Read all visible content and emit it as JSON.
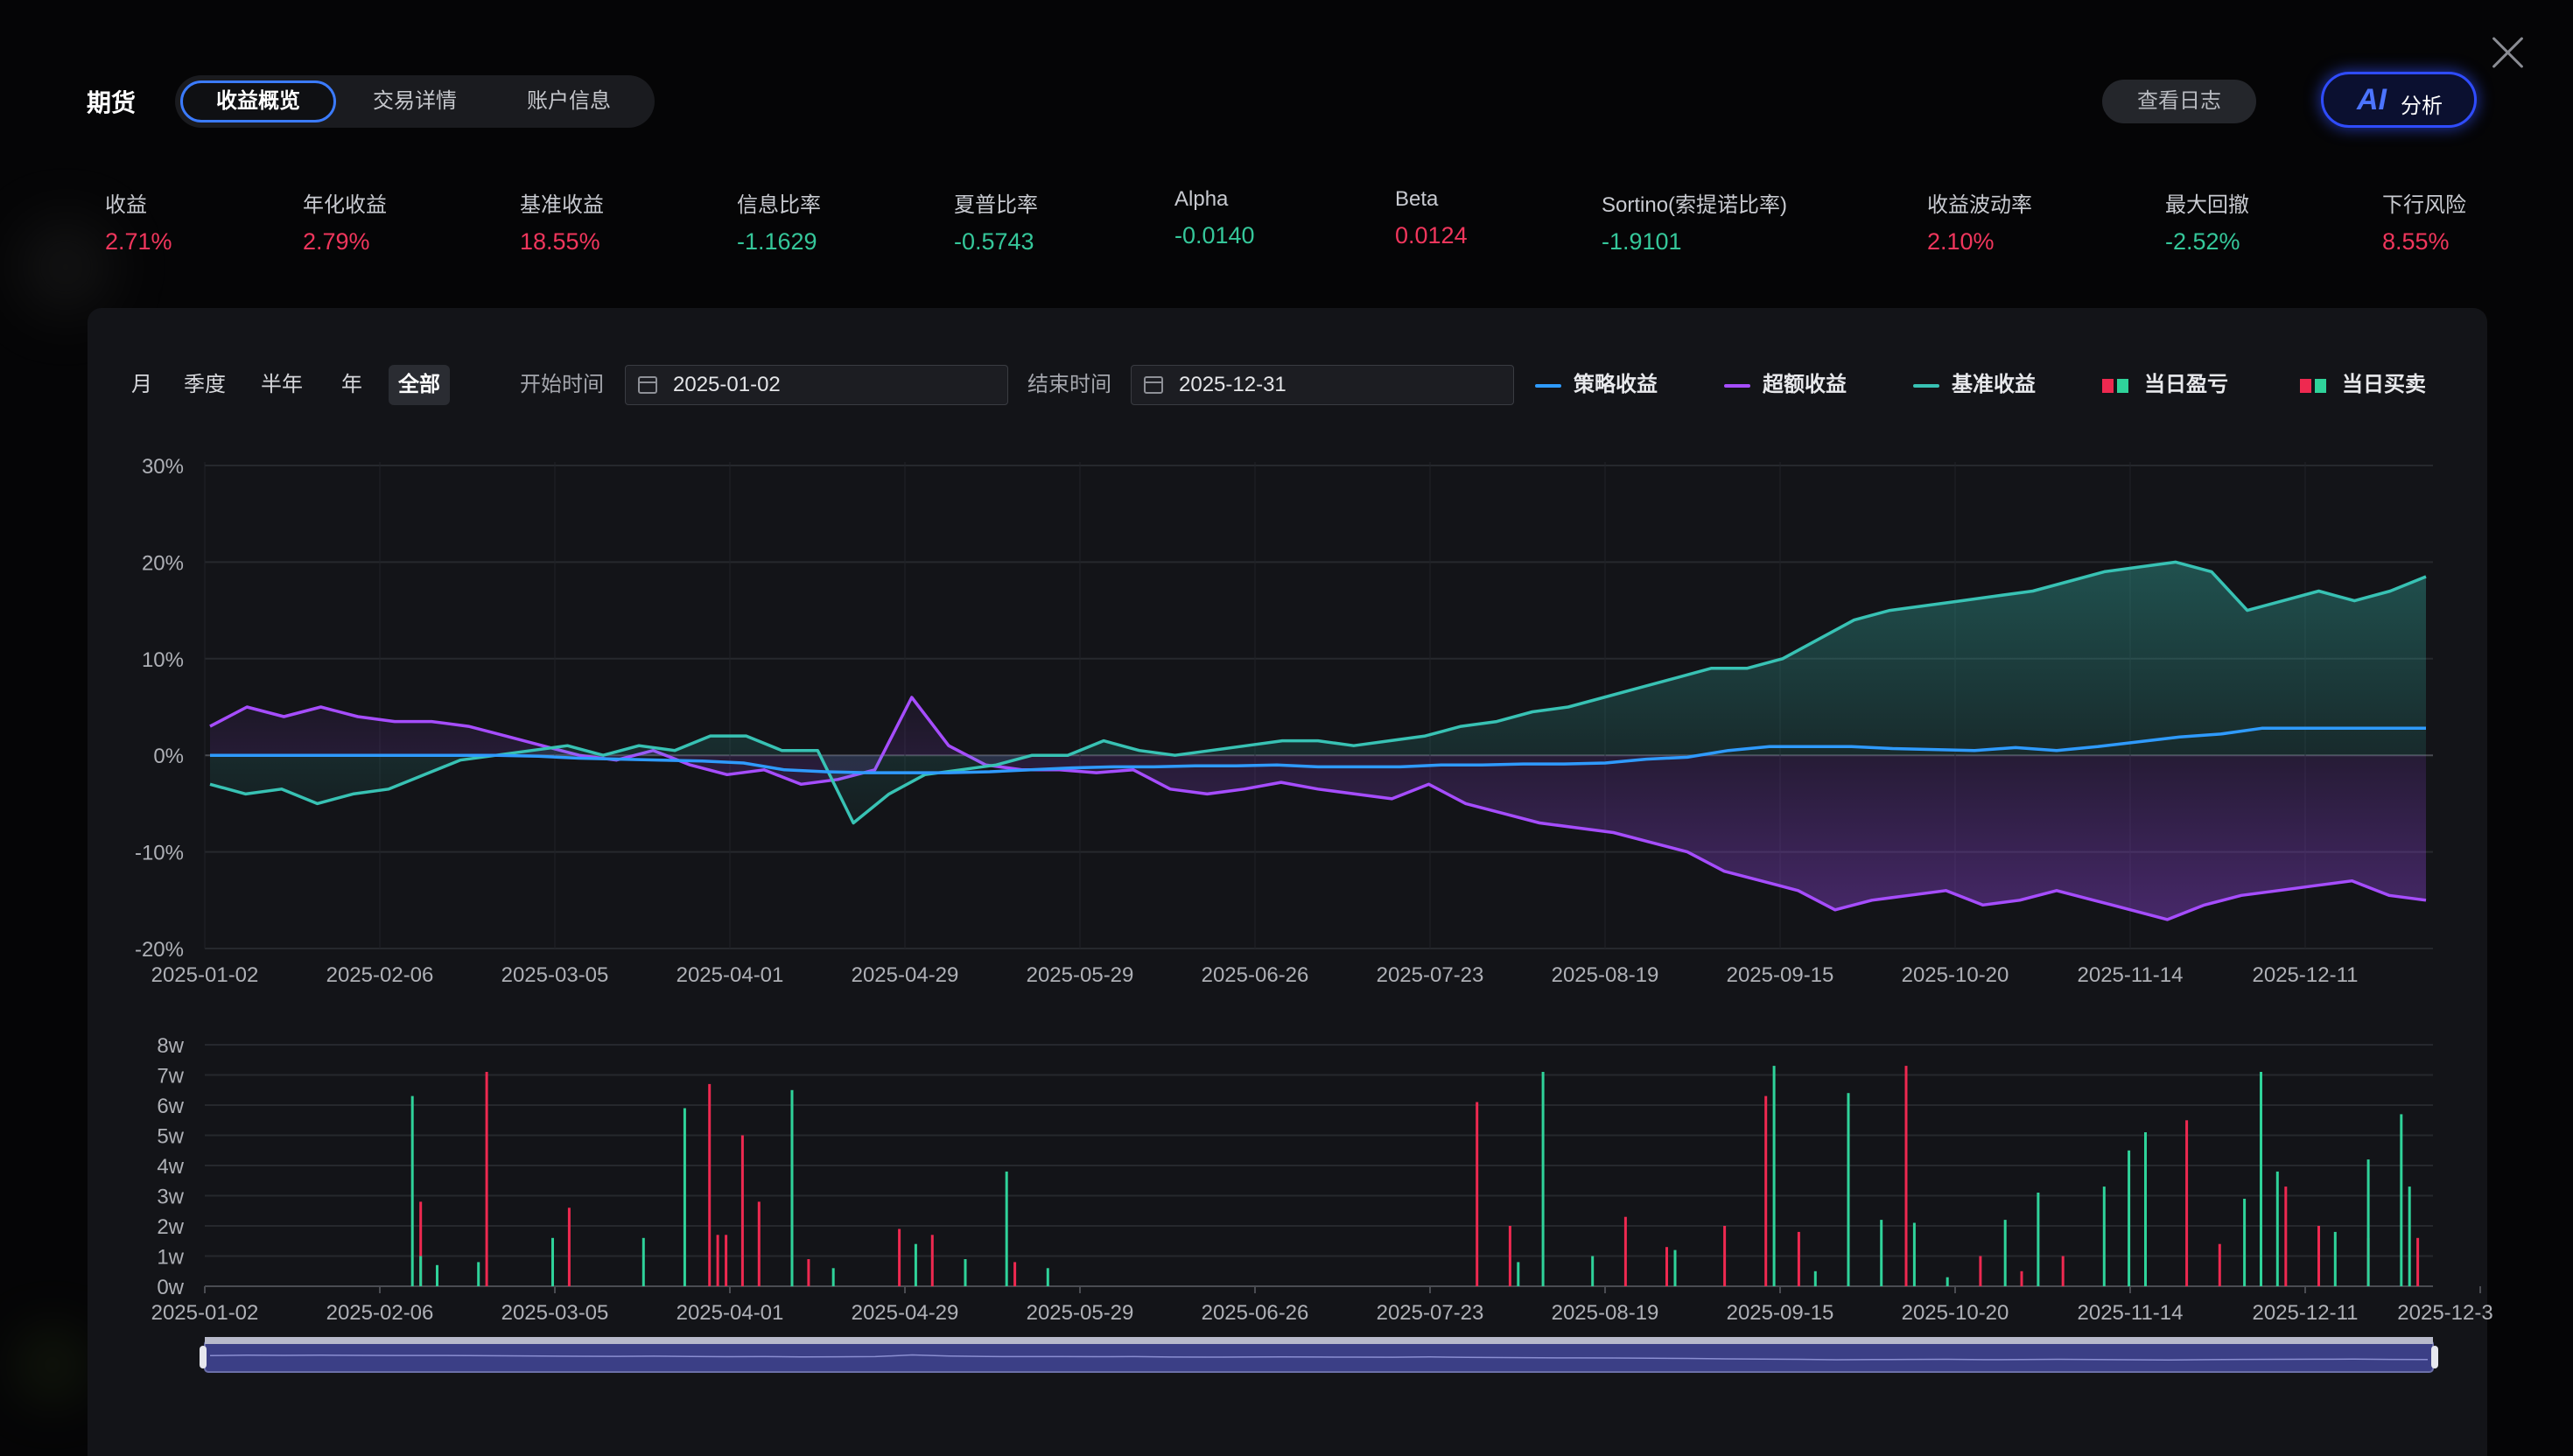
{
  "header": {
    "title": "期货",
    "tabs": [
      {
        "label": "收益概览",
        "active": true
      },
      {
        "label": "交易详情",
        "active": false
      },
      {
        "label": "账户信息",
        "active": false
      }
    ],
    "log_button": "查看日志",
    "ai_button": {
      "mark": "AI",
      "label": "分析"
    }
  },
  "metrics": [
    {
      "label": "收益",
      "value": "2.71%",
      "tone": "red"
    },
    {
      "label": "年化收益",
      "value": "2.79%",
      "tone": "red"
    },
    {
      "label": "基准收益",
      "value": "18.55%",
      "tone": "red"
    },
    {
      "label": "信息比率",
      "value": "-1.1629",
      "tone": "green"
    },
    {
      "label": "夏普比率",
      "value": "-0.5743",
      "tone": "green"
    },
    {
      "label": "Alpha",
      "value": "-0.0140",
      "tone": "green"
    },
    {
      "label": "Beta",
      "value": "0.0124",
      "tone": "red"
    },
    {
      "label": "Sortino(索提诺比率)",
      "value": "-1.9101",
      "tone": "green"
    },
    {
      "label": "收益波动率",
      "value": "2.10%",
      "tone": "red"
    },
    {
      "label": "最大回撤",
      "value": "-2.52%",
      "tone": "green"
    },
    {
      "label": "下行风险",
      "value": "8.55%",
      "tone": "red"
    }
  ],
  "filters": {
    "ranges": [
      "月",
      "季度",
      "半年",
      "年",
      "全部"
    ],
    "active_range": "全部",
    "start_label": "开始时间",
    "start_value": "2025-01-02",
    "end_label": "结束时间",
    "end_value": "2025-12-31"
  },
  "legend": [
    {
      "label": "策略收益",
      "kind": "line",
      "color": "#2f9bff"
    },
    {
      "label": "超额收益",
      "kind": "line",
      "color": "#a64dff"
    },
    {
      "label": "基准收益",
      "kind": "line",
      "color": "#38c2b4"
    },
    {
      "label": "当日盈亏",
      "kind": "squares",
      "colors": [
        "#ee2950",
        "#2fd39a"
      ]
    },
    {
      "label": "当日买卖",
      "kind": "squares",
      "colors": [
        "#ee2950",
        "#2fd39a"
      ]
    }
  ],
  "colors": {
    "strategy": "#2f9bff",
    "excess": "#a64dff",
    "benchmark": "#38c2b4",
    "buy": "#ee2950",
    "sell": "#2fd39a"
  },
  "chart_data": [
    {
      "type": "line",
      "x_ticks": [
        "2025-01-02",
        "2025-02-06",
        "2025-03-05",
        "2025-04-01",
        "2025-04-29",
        "2025-05-29",
        "2025-06-26",
        "2025-07-23",
        "2025-08-19",
        "2025-09-15",
        "2025-10-20",
        "2025-11-14",
        "2025-12-11"
      ],
      "y_ticks": [
        "30%",
        "20%",
        "10%",
        "0%",
        "-10%",
        "-20%"
      ],
      "ylim": [
        -20,
        30
      ],
      "series": [
        {
          "name": "策略收益",
          "area": false,
          "values": [
            0,
            0,
            0,
            0,
            0,
            0,
            0,
            0,
            -0.1,
            -0.3,
            -0.4,
            -0.5,
            -0.6,
            -0.8,
            -1.5,
            -1.7,
            -1.8,
            -1.8,
            -1.8,
            -1.7,
            -1.5,
            -1.3,
            -1.2,
            -1.2,
            -1.1,
            -1.1,
            -1.0,
            -1.2,
            -1.2,
            -1.2,
            -1.0,
            -1.0,
            -0.9,
            -0.9,
            -0.8,
            -0.4,
            -0.2,
            0.5,
            0.9,
            0.9,
            0.9,
            0.7,
            0.6,
            0.5,
            0.8,
            0.5,
            0.9,
            1.4,
            1.9,
            2.2,
            2.8,
            2.8,
            2.8,
            2.8,
            2.8
          ]
        },
        {
          "name": "超额收益",
          "area": true,
          "values": [
            3,
            5,
            4,
            5,
            4,
            3.5,
            3.5,
            3,
            2,
            1,
            0,
            -0.5,
            0.5,
            -1,
            -2,
            -1.5,
            -3,
            -2.5,
            -1.5,
            6,
            1,
            -1,
            -1.5,
            -1.5,
            -1.8,
            -1.5,
            -3.5,
            -4,
            -3.5,
            -2.8,
            -3.5,
            -4,
            -4.5,
            -3,
            -5,
            -6,
            -7,
            -7.5,
            -8,
            -9,
            -10,
            -12,
            -13,
            -14,
            -16,
            -15,
            -14.5,
            -14,
            -15.5,
            -15,
            -14,
            -15,
            -16,
            -17,
            -15.5,
            -14.5,
            -14,
            -13.5,
            -13,
            -14.5,
            -15
          ]
        },
        {
          "name": "基准收益",
          "area": true,
          "values": [
            -3,
            -4,
            -3.5,
            -5,
            -4,
            -3.5,
            -2,
            -0.5,
            0,
            0.5,
            1,
            0,
            1,
            0.5,
            2,
            2,
            0.5,
            0.5,
            -7,
            -4,
            -2,
            -1.5,
            -1,
            0,
            0,
            1.5,
            0.5,
            0,
            0.5,
            1,
            1.5,
            1.5,
            1,
            1.5,
            2,
            3,
            3.5,
            4.5,
            5,
            6,
            7,
            8,
            9,
            9,
            10,
            12,
            14,
            15,
            15.5,
            16,
            16.5,
            17,
            18,
            19,
            19.5,
            20,
            19,
            15,
            16,
            17,
            16,
            17,
            18.5
          ]
        }
      ]
    },
    {
      "type": "bar",
      "x_ticks": [
        "2025-01-02",
        "2025-02-06",
        "2025-03-05",
        "2025-04-01",
        "2025-04-29",
        "2025-05-29",
        "2025-06-26",
        "2025-07-23",
        "2025-08-19",
        "2025-09-15",
        "2025-10-20",
        "2025-11-14",
        "2025-12-11",
        "2025-12-3"
      ],
      "y_ticks": [
        "8w",
        "7w",
        "6w",
        "5w",
        "4w",
        "3w",
        "2w",
        "1w",
        "0w"
      ],
      "ylim": [
        0,
        8
      ],
      "series": [
        {
          "name": "当日买卖-买",
          "values": [
            [
              26,
              2.8
            ],
            [
              34,
              7.1
            ],
            [
              44,
              2.6
            ],
            [
              61,
              6.7
            ],
            [
              62,
              1.7
            ],
            [
              63,
              1.7
            ],
            [
              65,
              5.0
            ],
            [
              67,
              2.8
            ],
            [
              73,
              0.9
            ],
            [
              84,
              1.9
            ],
            [
              88,
              1.7
            ],
            [
              98,
              0.8
            ],
            [
              154,
              6.1
            ],
            [
              158,
              2.0
            ],
            [
              172,
              2.3
            ],
            [
              177,
              1.3
            ],
            [
              184,
              2.0
            ],
            [
              189,
              6.3
            ],
            [
              193,
              1.8
            ],
            [
              206,
              7.3
            ],
            [
              215,
              1.0
            ],
            [
              220,
              0.5
            ],
            [
              225,
              1.0
            ],
            [
              240,
              5.5
            ],
            [
              244,
              1.4
            ],
            [
              252,
              3.3
            ],
            [
              256,
              2.0
            ],
            [
              262,
              1.6
            ],
            [
              268,
              1.6
            ]
          ]
        },
        {
          "name": "当日买卖-卖",
          "values": [
            [
              25,
              6.3
            ],
            [
              26,
              1.0
            ],
            [
              28,
              0.7
            ],
            [
              33,
              0.8
            ],
            [
              42,
              1.6
            ],
            [
              53,
              1.6
            ],
            [
              58,
              5.9
            ],
            [
              71,
              6.5
            ],
            [
              76,
              0.6
            ],
            [
              86,
              1.4
            ],
            [
              92,
              0.9
            ],
            [
              97,
              3.8
            ],
            [
              102,
              0.6
            ],
            [
              159,
              0.8
            ],
            [
              162,
              7.1
            ],
            [
              168,
              1.0
            ],
            [
              178,
              1.2
            ],
            [
              190,
              7.3
            ],
            [
              195,
              0.5
            ],
            [
              199,
              6.4
            ],
            [
              203,
              2.2
            ],
            [
              207,
              2.1
            ],
            [
              211,
              0.3
            ],
            [
              218,
              2.2
            ],
            [
              222,
              3.1
            ],
            [
              230,
              3.3
            ],
            [
              233,
              4.5
            ],
            [
              235,
              5.1
            ],
            [
              247,
              2.9
            ],
            [
              249,
              7.1
            ],
            [
              251,
              3.8
            ],
            [
              258,
              1.8
            ],
            [
              262,
              4.2
            ],
            [
              266,
              5.7
            ],
            [
              267,
              3.3
            ]
          ]
        }
      ]
    }
  ]
}
